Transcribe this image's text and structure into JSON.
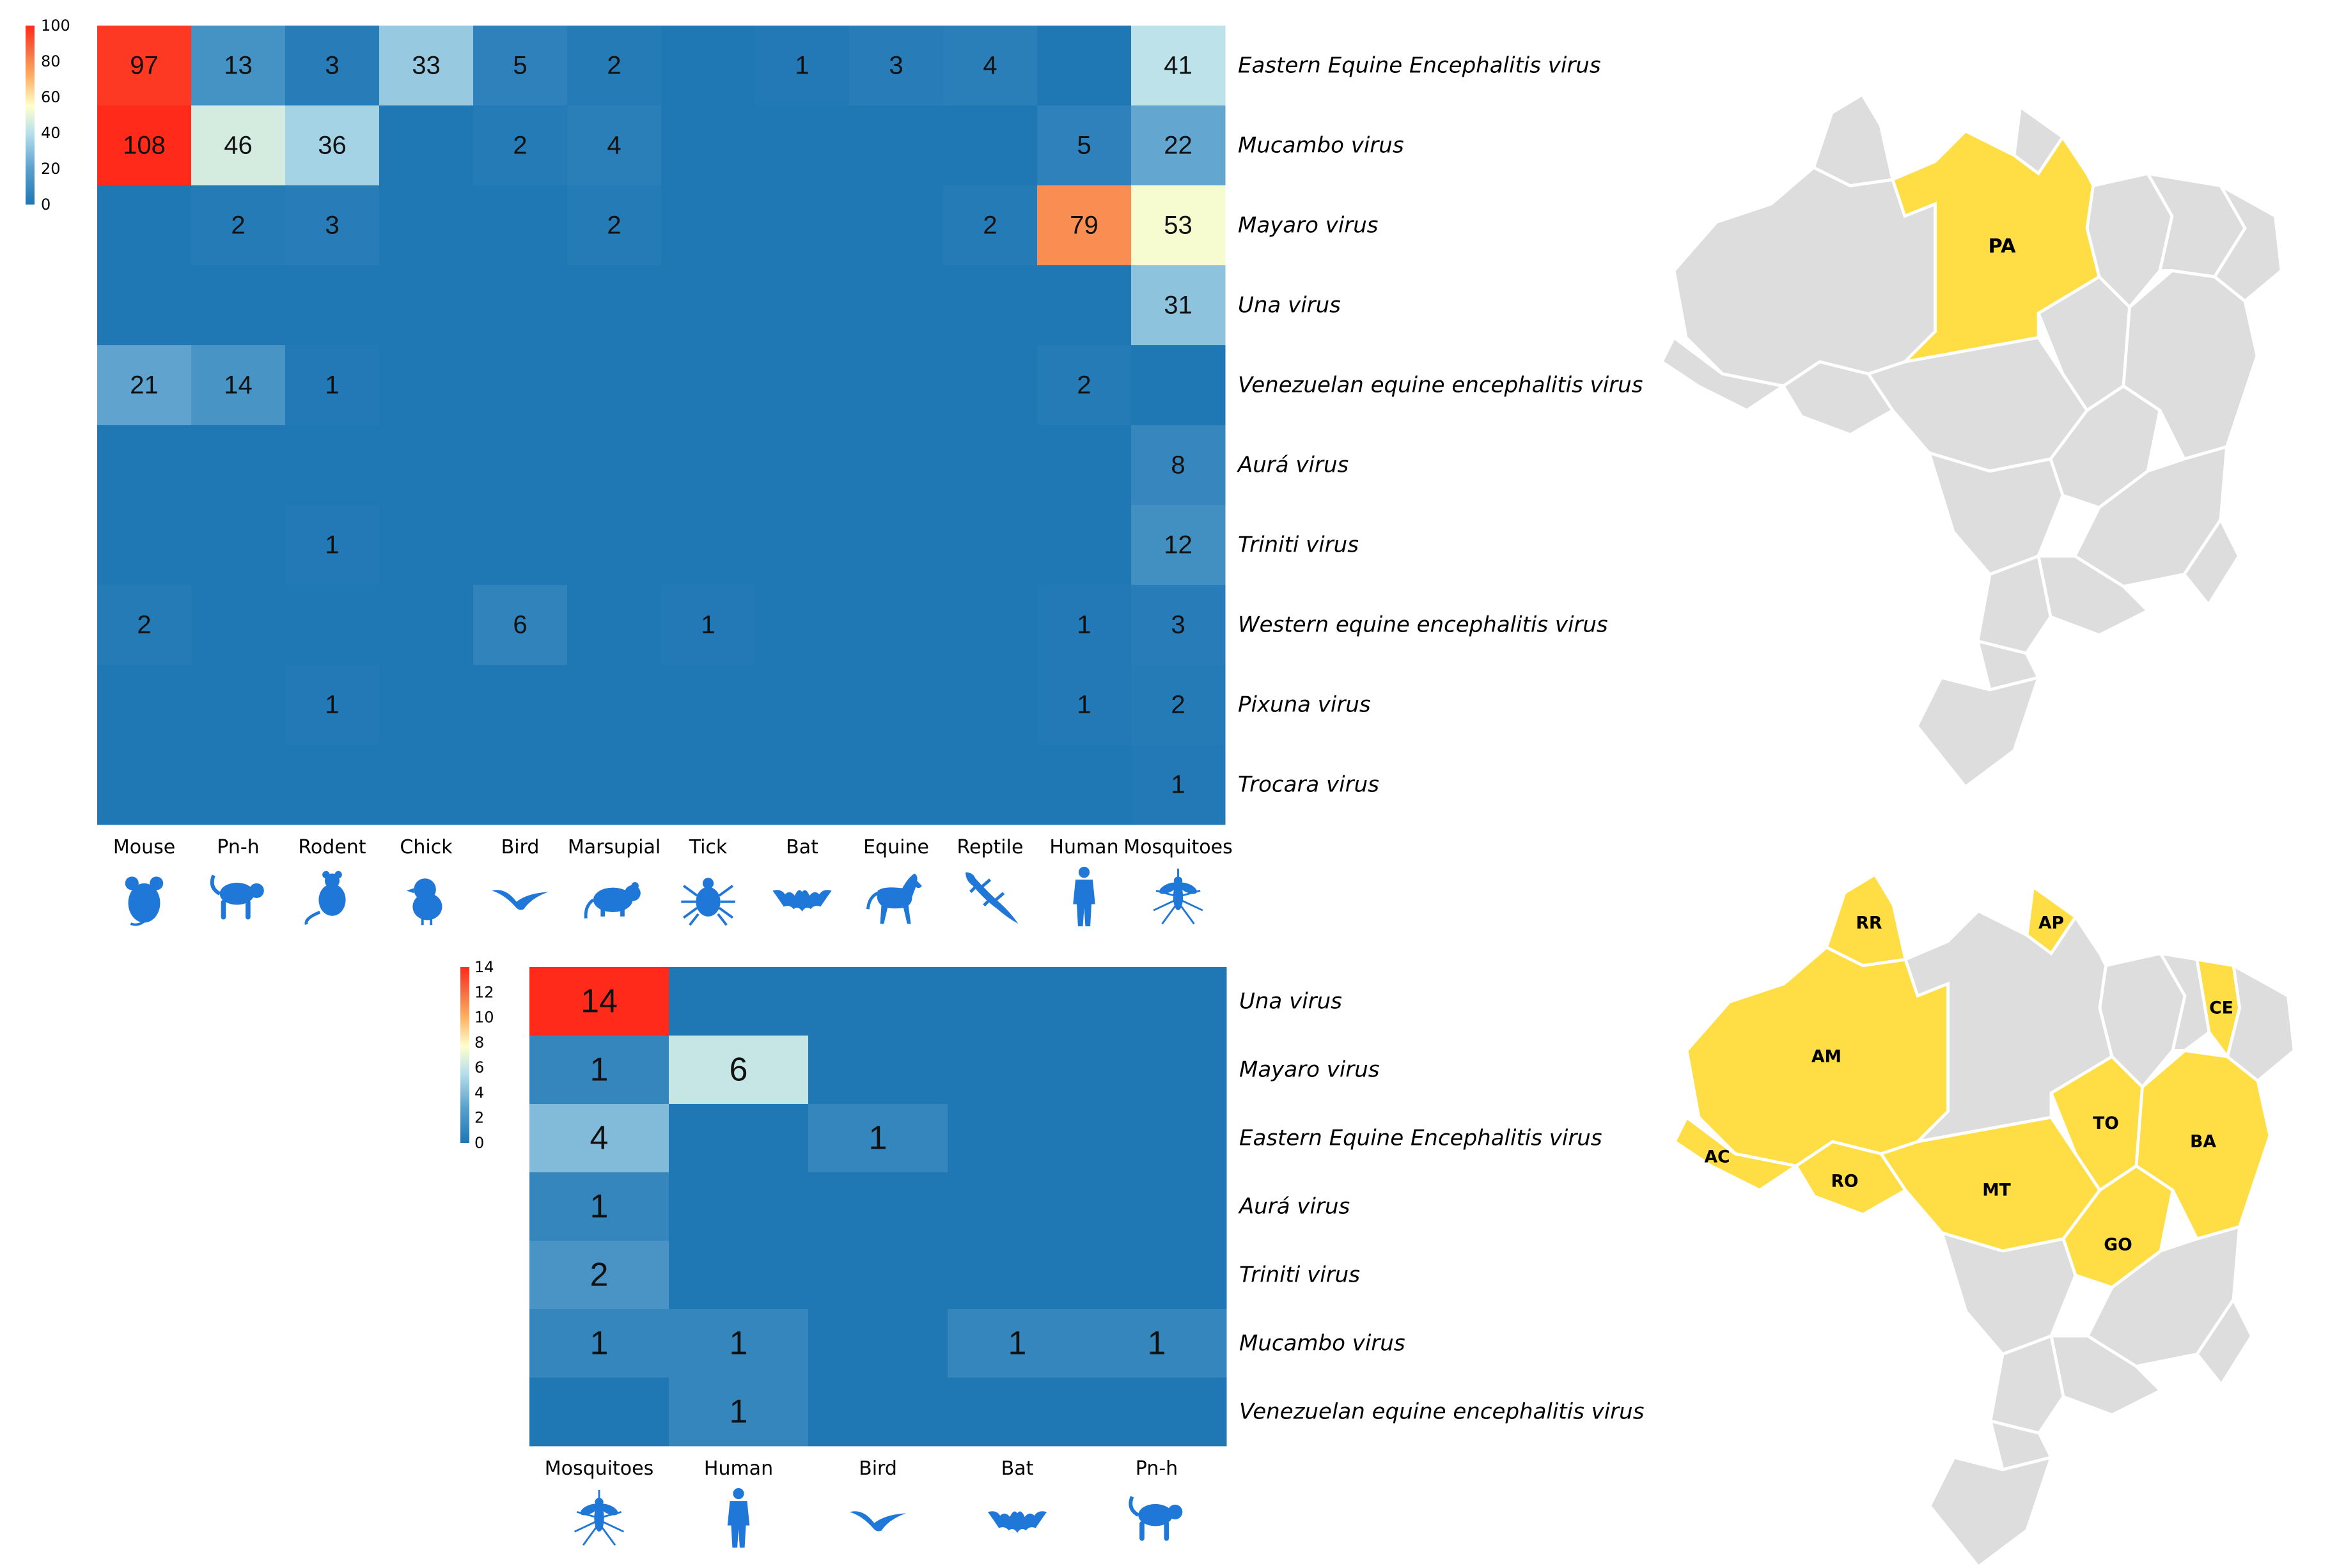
{
  "chart_data": [
    {
      "type": "heatmap",
      "title": "",
      "rows": [
        "Eastern Equine Encephalitis virus",
        "Mucambo virus",
        "Mayaro virus",
        "Una virus",
        "Venezuelan equine encephalitis virus",
        "Aurá virus",
        "Triniti virus",
        "Western equine encephalitis virus",
        "Pixuna virus",
        "Trocara virus"
      ],
      "columns": [
        "Mouse",
        "Pn-h",
        "Rodent",
        "Chick",
        "Bird",
        "Marsupial",
        "Tick",
        "Bat",
        "Equine",
        "Reptile",
        "Human",
        "Mosquitoes"
      ],
      "column_icons": [
        "mouse-icon",
        "monkey-icon",
        "rat-icon",
        "chick-icon",
        "bird-icon",
        "marsupial-icon",
        "tick-icon",
        "bat-icon",
        "horse-icon",
        "lizard-icon",
        "human-icon",
        "mosquito-icon"
      ],
      "values": [
        [
          97,
          13,
          3,
          33,
          5,
          2,
          0,
          1,
          3,
          4,
          0,
          41
        ],
        [
          108,
          46,
          36,
          0,
          2,
          4,
          0,
          0,
          0,
          0,
          5,
          22
        ],
        [
          0,
          2,
          3,
          0,
          0,
          2,
          0,
          0,
          0,
          2,
          79,
          53
        ],
        [
          0,
          0,
          0,
          0,
          0,
          0,
          0,
          0,
          0,
          0,
          0,
          31
        ],
        [
          21,
          14,
          1,
          0,
          0,
          0,
          0,
          0,
          0,
          0,
          2,
          0
        ],
        [
          0,
          0,
          0,
          0,
          0,
          0,
          0,
          0,
          0,
          0,
          0,
          8
        ],
        [
          0,
          0,
          1,
          0,
          0,
          0,
          0,
          0,
          0,
          0,
          0,
          12
        ],
        [
          2,
          0,
          0,
          0,
          6,
          0,
          1,
          0,
          0,
          0,
          1,
          3
        ],
        [
          0,
          0,
          1,
          0,
          0,
          0,
          0,
          0,
          0,
          0,
          1,
          2
        ],
        [
          0,
          0,
          0,
          0,
          0,
          0,
          0,
          0,
          0,
          0,
          0,
          1
        ]
      ],
      "value_range": [
        0,
        100
      ],
      "legend_ticks": [
        "100",
        "80",
        "60",
        "40",
        "20",
        "0"
      ],
      "legend_placement": "top-left",
      "colorscale": [
        "#1f77b4",
        "#5aa0cc",
        "#b8e0ec",
        "#ffffcc",
        "#fdae61",
        "#f46d43",
        "#ff2a1a"
      ]
    },
    {
      "type": "heatmap",
      "title": "",
      "rows": [
        "Una virus",
        "Mayaro virus",
        "Eastern Equine Encephalitis virus",
        "Aurá virus",
        "Triniti virus",
        "Mucambo virus",
        "Venezuelan equine encephalitis virus"
      ],
      "columns": [
        "Mosquitoes",
        "Human",
        "Bird",
        "Bat",
        "Pn-h"
      ],
      "column_icons": [
        "mosquito-icon",
        "human-icon",
        "bird-icon",
        "bat-icon",
        "monkey-icon"
      ],
      "values": [
        [
          14,
          0,
          0,
          0,
          0
        ],
        [
          1,
          6,
          0,
          0,
          0
        ],
        [
          4,
          0,
          1,
          0,
          0
        ],
        [
          1,
          0,
          0,
          0,
          0
        ],
        [
          2,
          0,
          0,
          0,
          0
        ],
        [
          1,
          1,
          0,
          1,
          1
        ],
        [
          0,
          1,
          0,
          0,
          0
        ]
      ],
      "value_range": [
        0,
        14
      ],
      "legend_ticks": [
        "14",
        "12",
        "10",
        "8",
        "6",
        "4",
        "2",
        "0"
      ],
      "legend_placement": "top-left",
      "colorscale": [
        "#1f77b4",
        "#5aa0cc",
        "#b8e0ec",
        "#ffffcc",
        "#fdae61",
        "#f46d43",
        "#ff2a1a"
      ]
    }
  ],
  "maps": [
    {
      "highlighted_states": [
        "PA"
      ],
      "highlight_color": "#ffdd44",
      "base_color": "#dddddd"
    },
    {
      "highlighted_states": [
        "RR",
        "AP",
        "AM",
        "CE",
        "AC",
        "RO",
        "TO",
        "MT",
        "BA",
        "GO"
      ],
      "highlight_color": "#ffdd44",
      "base_color": "#dddddd"
    }
  ]
}
